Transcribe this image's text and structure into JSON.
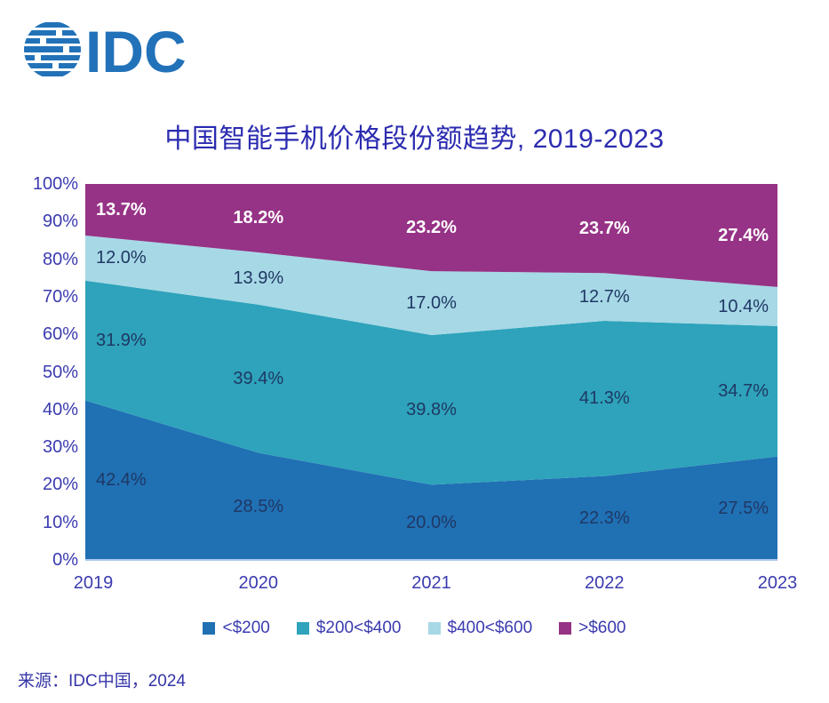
{
  "logo": {
    "text": "IDC",
    "brand_color": "#2272B9"
  },
  "title": "中国智能手机价格段份额趋势, 2019-2023",
  "source": "来源：IDC中国，2024",
  "colors": {
    "title_text": "#2B2BB0",
    "axis_text": "#3B3BB0",
    "source_text": "#3535A8",
    "data_label_dark": "#1F3864",
    "data_label_light": "#FFFFFF",
    "x_axis_line": "#AAC6EC"
  },
  "chart_data": {
    "type": "area",
    "stacked": true,
    "title": "中国智能手机价格段份额趋势, 2019-2023",
    "categories": [
      "2019",
      "2020",
      "2021",
      "2022",
      "2023"
    ],
    "series": [
      {
        "name": "<$200",
        "color": "#2070B4",
        "label_color": "#1F3864",
        "label_bold": false,
        "values": [
          42.4,
          28.5,
          20.0,
          22.3,
          27.5
        ]
      },
      {
        "name": "$200<$400",
        "color": "#2EA3BB",
        "label_color": "#1F3864",
        "label_bold": false,
        "values": [
          31.9,
          39.4,
          39.8,
          41.3,
          34.7
        ]
      },
      {
        "name": "$400<$600",
        "color": "#A7D8E6",
        "label_color": "#1F3864",
        "label_bold": false,
        "values": [
          12.0,
          13.9,
          17.0,
          12.7,
          10.4
        ]
      },
      {
        "name": ">$600",
        "color": "#963386",
        "label_color": "#FFFFFF",
        "label_bold": true,
        "values": [
          13.7,
          18.2,
          23.2,
          23.7,
          27.4
        ]
      }
    ],
    "ylim": [
      0,
      100
    ],
    "y_ticks": [
      "100%",
      "90%",
      "80%",
      "70%",
      "60%",
      "50%",
      "40%",
      "30%",
      "20%",
      "10%",
      "0%"
    ],
    "grid": false,
    "legend_position": "bottom"
  }
}
